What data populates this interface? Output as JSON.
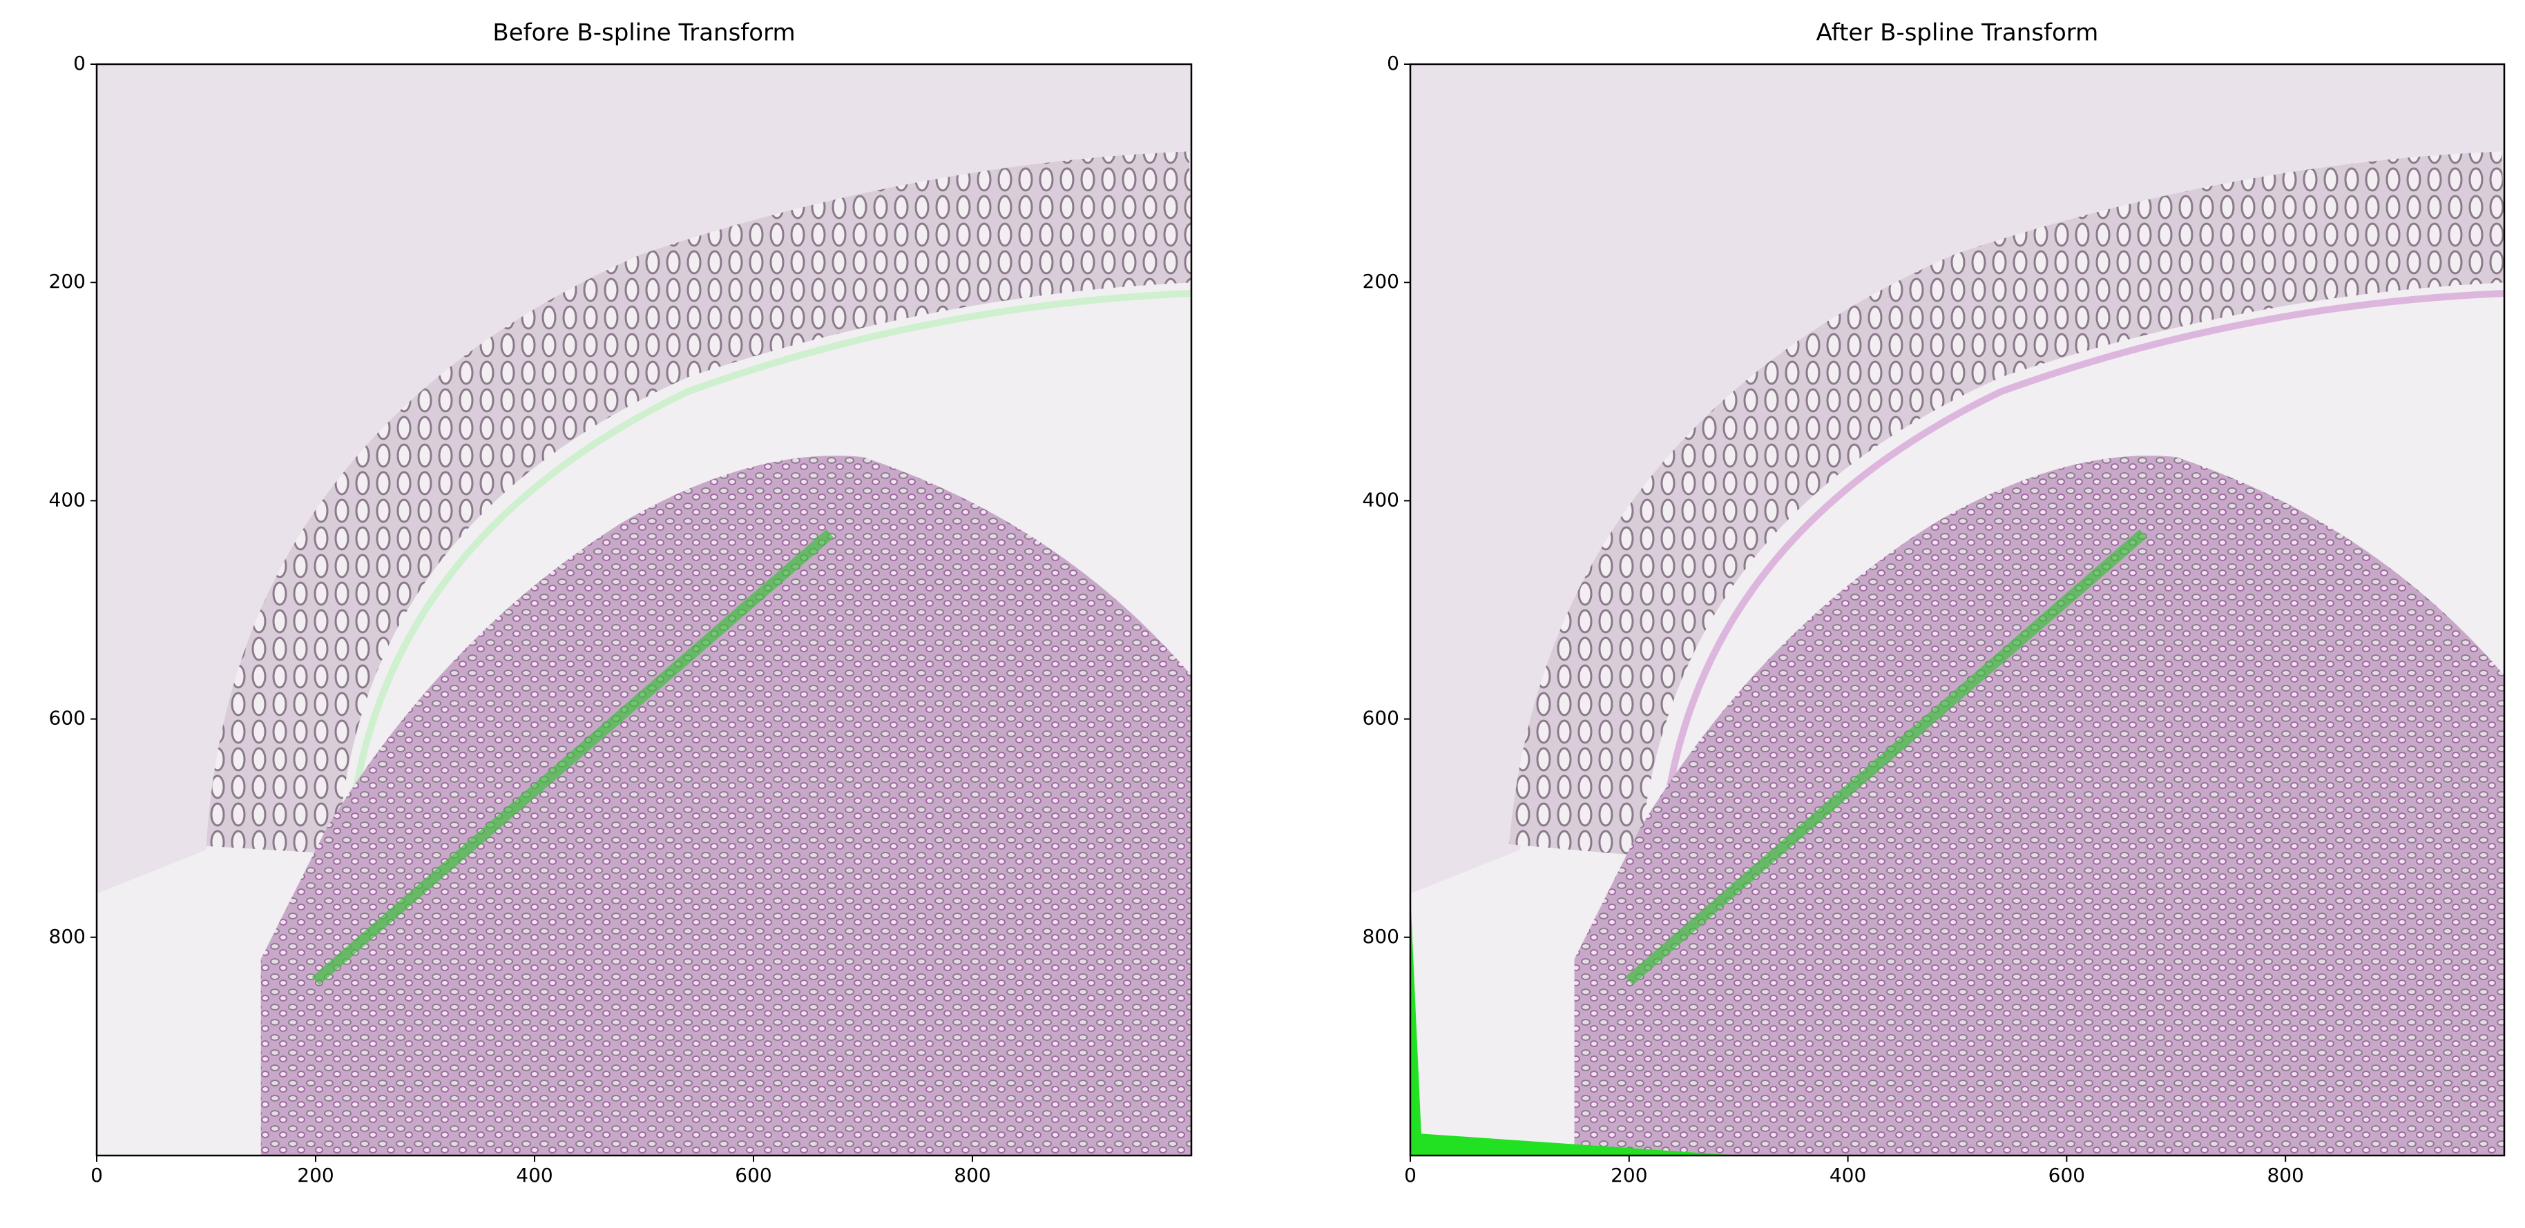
{
  "chart_data": [
    {
      "type": "image",
      "title": "Before B-spline Transform",
      "xlim": [
        0,
        1000
      ],
      "ylim": [
        1000,
        0
      ],
      "xticks": [
        0,
        200,
        400,
        600,
        800
      ],
      "yticks": [
        0,
        200,
        400,
        600,
        800
      ]
    },
    {
      "type": "image",
      "title": "After B-spline Transform",
      "xlim": [
        0,
        1000
      ],
      "ylim": [
        1000,
        0
      ],
      "xticks": [
        0,
        200,
        400,
        600,
        800
      ],
      "yticks": [
        0,
        200,
        400,
        600,
        800
      ]
    }
  ]
}
